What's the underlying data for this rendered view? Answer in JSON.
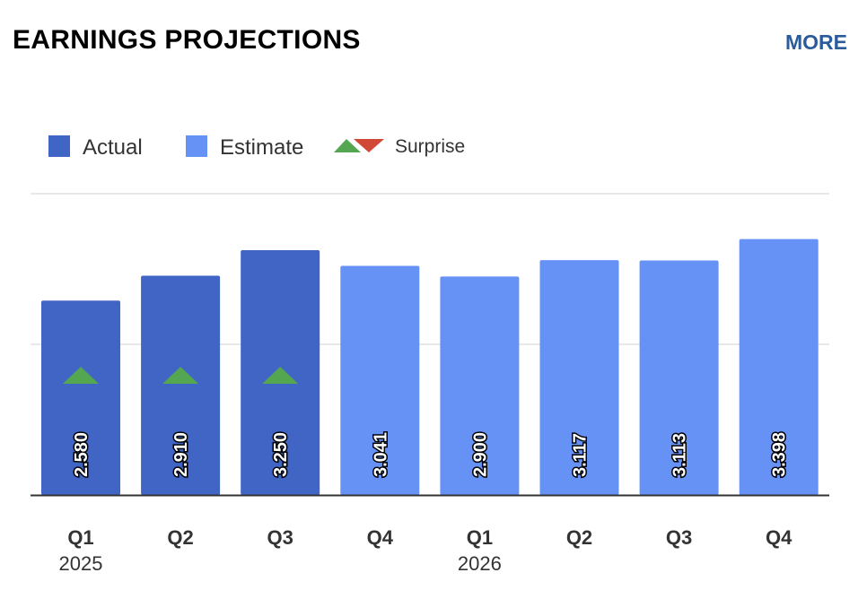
{
  "header": {
    "title": "EARNINGS PROJECTIONS",
    "more_label": "MORE"
  },
  "colors": {
    "actual": "#4165c4",
    "estimate": "#6792f5",
    "surprise_up": "#55a650",
    "surprise_down": "#d14836",
    "link": "#2a5b9a"
  },
  "chart_data": {
    "type": "bar",
    "categories": [
      "Q1 2025",
      "Q2 2025",
      "Q3 2025",
      "Q4 2025",
      "Q1 2026",
      "Q2 2026",
      "Q3 2026",
      "Q4 2026"
    ],
    "quarter_labels": [
      "Q1",
      "Q2",
      "Q3",
      "Q4",
      "Q1",
      "Q2",
      "Q3",
      "Q4"
    ],
    "year_labels": [
      {
        "label": "2025",
        "index": 0
      },
      {
        "label": "2026",
        "index": 4
      }
    ],
    "values": [
      2.58,
      2.91,
      3.25,
      3.041,
      2.9,
      3.117,
      3.113,
      3.398
    ],
    "value_labels": [
      "2.580",
      "2.910",
      "3.250",
      "3.041",
      "2.900",
      "3.117",
      "3.113",
      "3.398"
    ],
    "kind": [
      "actual",
      "actual",
      "actual",
      "estimate",
      "estimate",
      "estimate",
      "estimate",
      "estimate"
    ],
    "surprise": [
      "up",
      "up",
      "up",
      null,
      null,
      null,
      null,
      null
    ],
    "legend": [
      {
        "label": "Actual",
        "key": "actual"
      },
      {
        "label": "Estimate",
        "key": "estimate"
      },
      {
        "label": "Surprise",
        "key": "surprise"
      }
    ],
    "legend_placement": "top-left",
    "ylim": [
      0,
      4
    ],
    "gridlines": [
      2,
      4
    ],
    "grid": true,
    "ytick_labels_shown": false
  }
}
